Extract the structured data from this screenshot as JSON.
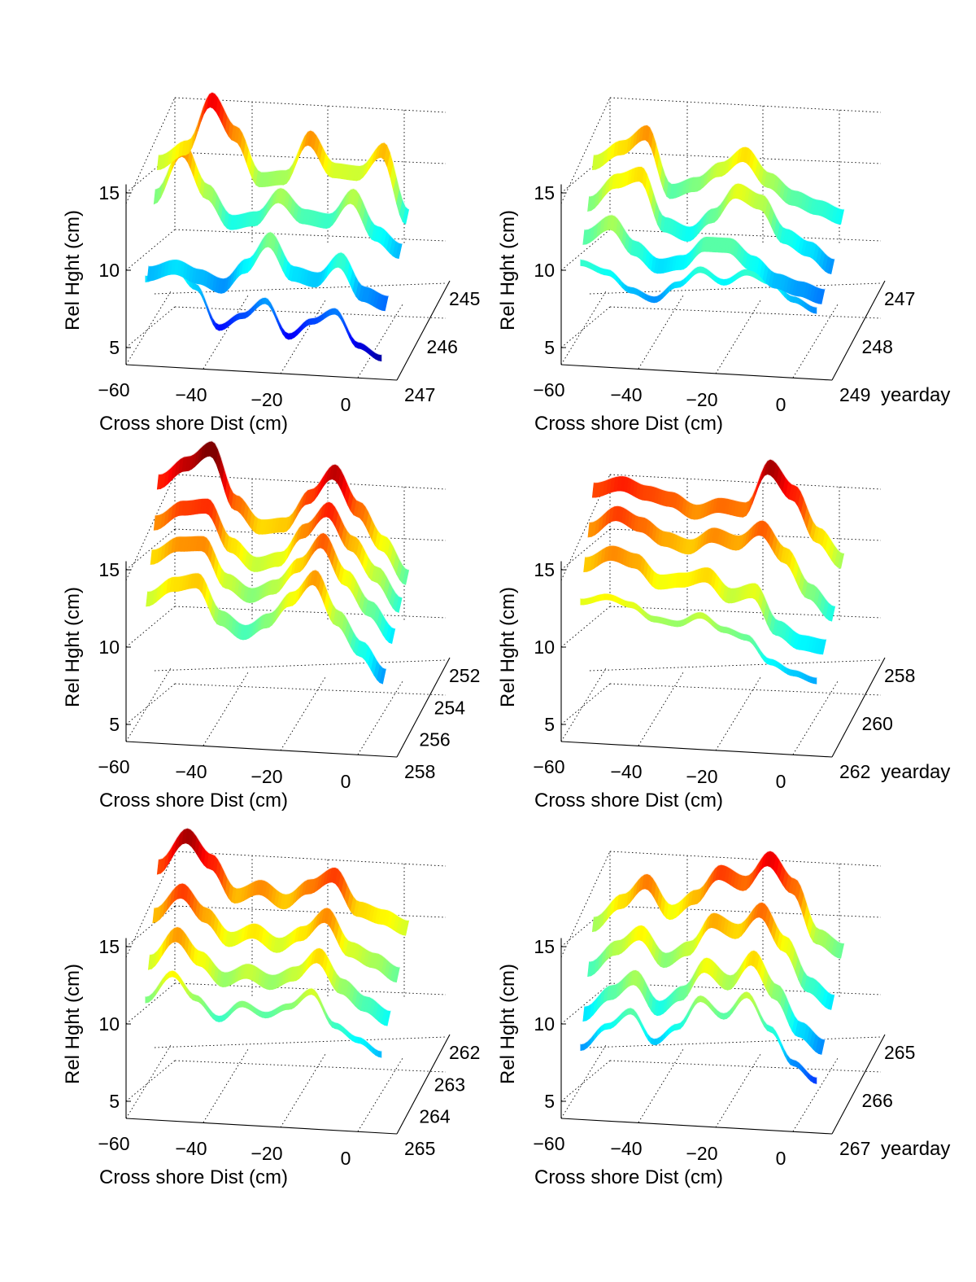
{
  "chart_data": [
    {
      "type": "surface3d",
      "xlabel": "Cross shore Dist (cm)",
      "ylabel": "",
      "zlabel": "Rel Hght (cm)",
      "x_ticks": [
        "−60",
        "−40",
        "−20",
        "0"
      ],
      "y_ticks": [
        "245",
        "246",
        "247"
      ],
      "z_ticks": [
        "5",
        "10",
        "15"
      ],
      "xlim": [
        -60,
        10
      ],
      "ylim": [
        245,
        247
      ],
      "zlim": [
        4,
        19
      ],
      "colormap": "jet",
      "grid": true,
      "series": [
        {
          "day": 245,
          "x": [
            -55,
            -48,
            -42,
            -36,
            -30,
            -24,
            -18,
            -12,
            -6,
            0,
            6
          ],
          "z": [
            12.5,
            13.5,
            16.5,
            14.5,
            11.8,
            12,
            14.5,
            12.6,
            12.5,
            14,
            10
          ]
        },
        {
          "day": 245.5,
          "x": [
            -55,
            -48,
            -42,
            -36,
            -30,
            -24,
            -18,
            -12,
            -6,
            0,
            6
          ],
          "z": [
            11.5,
            14.5,
            12,
            10.2,
            10.5,
            12,
            10.8,
            10.6,
            12.2,
            10,
            9
          ]
        },
        {
          "day": 246.5,
          "x": [
            -55,
            -48,
            -42,
            -36,
            -30,
            -24,
            -18,
            -12,
            -6,
            0,
            6
          ],
          "z": [
            9,
            9.5,
            9,
            8.5,
            9.8,
            11.5,
            9.5,
            9.2,
            10.5,
            8.5,
            8
          ]
        },
        {
          "day": 247,
          "x": [
            -55,
            -48,
            -42,
            -36,
            -30,
            -24,
            -18,
            -12,
            -6,
            0,
            6
          ],
          "z": [
            9.5,
            10.5,
            9.2,
            6.8,
            7.6,
            8.6,
            6.5,
            7.5,
            8.2,
            6.2,
            5.5
          ]
        }
      ]
    },
    {
      "type": "surface3d",
      "xlabel": "Cross shore Dist (cm)",
      "ylabel": "yearday",
      "zlabel": "Rel Hght (cm)",
      "x_ticks": [
        "−60",
        "−40",
        "−20",
        "0"
      ],
      "y_ticks": [
        "247",
        "248",
        "249"
      ],
      "z_ticks": [
        "5",
        "10",
        "15"
      ],
      "xlim": [
        -60,
        10
      ],
      "ylim": [
        247,
        249
      ],
      "zlim": [
        4,
        19
      ],
      "colormap": "jet",
      "grid": true,
      "series": [
        {
          "day": 247,
          "x": [
            -55,
            -48,
            -42,
            -36,
            -30,
            -24,
            -18,
            -12,
            -6,
            0,
            6
          ],
          "z": [
            12.5,
            13.5,
            14.5,
            11,
            11.5,
            12.5,
            13.5,
            12,
            11,
            10.5,
            10
          ]
        },
        {
          "day": 247.7,
          "x": [
            -55,
            -48,
            -42,
            -36,
            -30,
            -24,
            -18,
            -12,
            -6,
            0,
            6
          ],
          "z": [
            11.5,
            13,
            13.5,
            10.5,
            10,
            11.2,
            12.8,
            12.2,
            10.2,
            9.5,
            8.5
          ]
        },
        {
          "day": 248.4,
          "x": [
            -55,
            -48,
            -42,
            -36,
            -30,
            -24,
            -18,
            -12,
            -6,
            0,
            6
          ],
          "z": [
            11,
            12,
            10.5,
            9.5,
            9.8,
            11,
            11,
            10,
            9,
            8.6,
            8.2
          ]
        },
        {
          "day": 249,
          "x": [
            -55,
            -48,
            -42,
            -36,
            -30,
            -24,
            -18,
            -12,
            -6,
            0,
            6
          ],
          "z": [
            10.5,
            10,
            9,
            8.5,
            9.5,
            10.5,
            9.8,
            10.5,
            10,
            9,
            8.4
          ]
        }
      ]
    },
    {
      "type": "surface3d",
      "xlabel": "Cross shore Dist (cm)",
      "ylabel": "",
      "zlabel": "Rel Hght (cm)",
      "x_ticks": [
        "−60",
        "−40",
        "−20",
        "0"
      ],
      "y_ticks": [
        "252",
        "254",
        "256",
        "258"
      ],
      "z_ticks": [
        "5",
        "10",
        "15"
      ],
      "xlim": [
        -60,
        10
      ],
      "ylim": [
        252,
        258
      ],
      "zlim": [
        4,
        19
      ],
      "colormap": "jet",
      "grid": true,
      "series": [
        {
          "day": 252,
          "x": [
            -55,
            -48,
            -42,
            -36,
            -30,
            -24,
            -18,
            -12,
            -6,
            0,
            6
          ],
          "z": [
            16,
            17.2,
            18.2,
            15,
            13.6,
            13.8,
            15.6,
            17.2,
            15,
            13,
            11
          ]
        },
        {
          "day": 253.5,
          "x": [
            -55,
            -48,
            -42,
            -36,
            -30,
            -24,
            -18,
            -12,
            -6,
            0,
            6
          ],
          "z": [
            14.6,
            15.6,
            15.8,
            13.5,
            12.4,
            12.8,
            14.6,
            16,
            14,
            12.2,
            10.4
          ]
        },
        {
          "day": 255,
          "x": [
            -55,
            -48,
            -42,
            -36,
            -30,
            -24,
            -18,
            -12,
            -6,
            0,
            6
          ],
          "z": [
            13.6,
            14.5,
            14.6,
            12.4,
            11.6,
            12.2,
            13.6,
            15.2,
            13,
            11.2,
            9.6
          ]
        },
        {
          "day": 257,
          "x": [
            -55,
            -48,
            -42,
            -36,
            -30,
            -24,
            -18,
            -12,
            -6,
            0,
            6
          ],
          "z": [
            12.5,
            13.5,
            13.8,
            11.6,
            10.8,
            11.6,
            13,
            14.4,
            12,
            10.2,
            8.6
          ]
        }
      ]
    },
    {
      "type": "surface3d",
      "xlabel": "Cross shore Dist (cm)",
      "ylabel": "yearday",
      "zlabel": "Rel Hght (cm)",
      "x_ticks": [
        "−60",
        "−40",
        "−20",
        "0"
      ],
      "y_ticks": [
        "258",
        "260",
        "262"
      ],
      "z_ticks": [
        "5",
        "10",
        "15"
      ],
      "xlim": [
        -60,
        10
      ],
      "ylim": [
        258,
        262
      ],
      "zlim": [
        4,
        19
      ],
      "colormap": "jet",
      "grid": true,
      "series": [
        {
          "day": 258,
          "x": [
            -55,
            -48,
            -42,
            -36,
            -30,
            -24,
            -18,
            -12,
            -6,
            0,
            6
          ],
          "z": [
            15.5,
            16,
            15.5,
            15.2,
            14.5,
            15,
            14.8,
            17.5,
            16,
            13.5,
            12
          ]
        },
        {
          "day": 259.3,
          "x": [
            -55,
            -48,
            -42,
            -36,
            -30,
            -24,
            -18,
            -12,
            -6,
            0,
            6
          ],
          "z": [
            14.5,
            15.6,
            15,
            14.2,
            13.8,
            14.6,
            14.2,
            15.2,
            13.6,
            11.5,
            10.2
          ]
        },
        {
          "day": 260.6,
          "x": [
            -55,
            -48,
            -42,
            -36,
            -30,
            -24,
            -18,
            -12,
            -6,
            0,
            6
          ],
          "z": [
            13.8,
            14.6,
            14.2,
            13,
            13.2,
            13.6,
            12.4,
            12.8,
            10.6,
            9.8,
            9.6
          ]
        },
        {
          "day": 262,
          "x": [
            -55,
            -48,
            -42,
            -36,
            -30,
            -24,
            -18,
            -12,
            -6,
            0,
            6
          ],
          "z": [
            12.8,
            13.2,
            12.8,
            12,
            11.8,
            12.4,
            11.6,
            11.2,
            9.8,
            9.2,
            8.8
          ]
        }
      ]
    },
    {
      "type": "surface3d",
      "xlabel": "Cross shore Dist (cm)",
      "ylabel": "",
      "zlabel": "Rel Hght (cm)",
      "x_ticks": [
        "−60",
        "−40",
        "−20",
        "0"
      ],
      "y_ticks": [
        "262",
        "263",
        "264",
        "265"
      ],
      "z_ticks": [
        "5",
        "10",
        "15"
      ],
      "xlim": [
        -60,
        10
      ],
      "ylim": [
        262,
        265
      ],
      "zlim": [
        4,
        19
      ],
      "colormap": "jet",
      "grid": true,
      "series": [
        {
          "day": 262,
          "x": [
            -55,
            -48,
            -42,
            -36,
            -30,
            -24,
            -18,
            -12,
            -6,
            0,
            6
          ],
          "z": [
            15.5,
            17.5,
            16,
            14,
            14.6,
            13.8,
            14.8,
            15.6,
            13.6,
            13.2,
            12.6
          ]
        },
        {
          "day": 263,
          "x": [
            -55,
            -48,
            -42,
            -36,
            -30,
            -24,
            -18,
            -12,
            -6,
            0,
            6
          ],
          "z": [
            14,
            15.6,
            14.2,
            12.8,
            13.4,
            12.6,
            13.4,
            14.6,
            12.6,
            12,
            11.2
          ]
        },
        {
          "day": 264,
          "x": [
            -55,
            -48,
            -42,
            -36,
            -30,
            -24,
            -18,
            -12,
            -6,
            0,
            6
          ],
          "z": [
            12.6,
            14.4,
            13,
            11.8,
            12.4,
            11.8,
            12.4,
            13.6,
            11.8,
            10.8,
            10
          ]
        },
        {
          "day": 265,
          "x": [
            -55,
            -48,
            -42,
            -36,
            -30,
            -24,
            -18,
            -12,
            -6,
            0,
            6
          ],
          "z": [
            11.5,
            13.2,
            11.8,
            10.6,
            11.6,
            11,
            11.6,
            12.6,
            10.6,
            9.8,
            9
          ]
        }
      ]
    },
    {
      "type": "surface3d",
      "xlabel": "Cross shore Dist (cm)",
      "ylabel": "yearday",
      "zlabel": "Rel Hght (cm)",
      "x_ticks": [
        "−60",
        "−40",
        "−20",
        "0"
      ],
      "y_ticks": [
        "265",
        "266",
        "267"
      ],
      "z_ticks": [
        "5",
        "10",
        "15"
      ],
      "xlim": [
        -60,
        10
      ],
      "ylim": [
        265,
        267
      ],
      "zlim": [
        4,
        19
      ],
      "colormap": "jet",
      "grid": true,
      "series": [
        {
          "day": 265,
          "x": [
            -55,
            -48,
            -42,
            -36,
            -30,
            -24,
            -18,
            -12,
            -6,
            0,
            6
          ],
          "z": [
            12,
            13.5,
            14.8,
            13,
            14,
            15.6,
            15,
            16.6,
            15,
            12,
            11.2
          ]
        },
        {
          "day": 265.7,
          "x": [
            -55,
            -48,
            -42,
            -36,
            -30,
            -24,
            -18,
            -12,
            -6,
            0,
            6
          ],
          "z": [
            10.8,
            12.2,
            13.2,
            11.6,
            12.4,
            14.2,
            13.6,
            15,
            13,
            10.6,
            9.6
          ]
        },
        {
          "day": 266.4,
          "x": [
            -55,
            -48,
            -42,
            -36,
            -30,
            -24,
            -18,
            -12,
            -6,
            0,
            6
          ],
          "z": [
            9.6,
            11,
            12,
            10.2,
            11.2,
            13,
            12,
            13.6,
            11.6,
            9.4,
            8.4
          ]
        },
        {
          "day": 267,
          "x": [
            -55,
            -48,
            -42,
            -36,
            -30,
            -24,
            -18,
            -12,
            -6,
            0,
            6
          ],
          "z": [
            8.6,
            10,
            11,
            9.2,
            10.2,
            12,
            11,
            12.4,
            10.4,
            8.4,
            7.4
          ]
        }
      ]
    }
  ]
}
